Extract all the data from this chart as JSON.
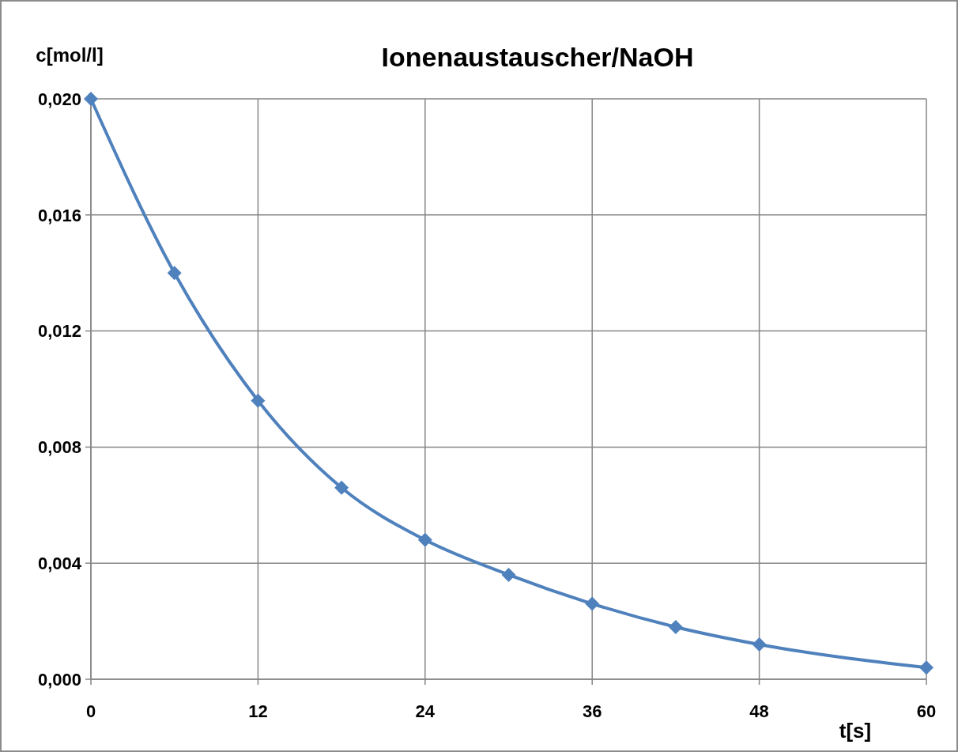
{
  "chart_data": {
    "type": "line",
    "title": "Ionenaustauscher/NaOH",
    "xlabel": "t[s]",
    "ylabel": "c[mol/l]",
    "x": [
      0,
      6,
      12,
      18,
      24,
      30,
      36,
      42,
      48,
      60
    ],
    "series": [
      {
        "color": "#4f81bd",
        "values": [
          0.02,
          0.014,
          0.0096,
          0.0066,
          0.0048,
          0.0036,
          0.0026,
          0.0018,
          0.0012,
          0.0004
        ]
      }
    ],
    "xlim": [
      0,
      60
    ],
    "xticks": [
      0,
      12,
      24,
      36,
      48,
      60
    ],
    "ylim": [
      0,
      0.02
    ],
    "yticks": [
      {
        "value": 0,
        "label": "0,000"
      },
      {
        "value": 0.004,
        "label": "0,004"
      },
      {
        "value": 0.008,
        "label": "0,008"
      },
      {
        "value": 0.012,
        "label": "0,012"
      },
      {
        "value": 0.016,
        "label": "0,016"
      },
      {
        "value": 0.02,
        "label": "0,020"
      }
    ],
    "grid": true,
    "marker": "diamond",
    "line_style": "solid"
  }
}
